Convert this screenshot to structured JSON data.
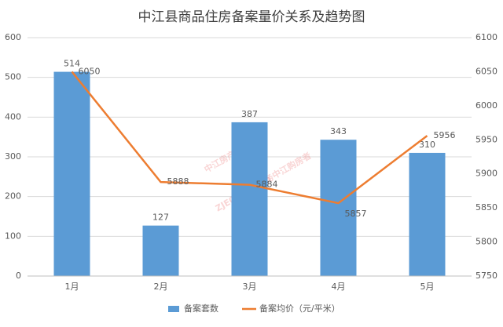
{
  "chart_data": {
    "type": "bar",
    "title": "中江县商品住房备案量价关系及趋势图",
    "categories": [
      "1月",
      "2月",
      "3月",
      "4月",
      "5月"
    ],
    "series": [
      {
        "name": "备案套数",
        "type": "bar",
        "color": "#5b9bd5",
        "values": [
          514,
          127,
          387,
          343,
          310
        ]
      },
      {
        "name": "备案均价（元/平米）",
        "type": "line",
        "axis": "y2",
        "color": "#ed7d31",
        "values": [
          6050,
          5888,
          5884,
          5857,
          5956
        ]
      }
    ],
    "ylim": [
      0,
      600
    ],
    "yticks": [
      0,
      100,
      200,
      300,
      400,
      500,
      600
    ],
    "y2lim": [
      5750,
      6100
    ],
    "y2ticks": [
      5750,
      5800,
      5850,
      5900,
      5950,
      6000,
      6050,
      6100
    ],
    "grid": true,
    "legend": "bottom",
    "watermark": [
      "中江房产网",
      "ZJE0838.com",
      "服务中江购房者"
    ]
  }
}
